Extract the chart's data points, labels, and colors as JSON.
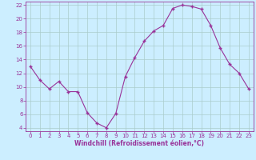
{
  "x": [
    0,
    1,
    2,
    3,
    4,
    5,
    6,
    7,
    8,
    9,
    10,
    11,
    12,
    13,
    14,
    15,
    16,
    17,
    18,
    19,
    20,
    21,
    22,
    23
  ],
  "y": [
    13,
    11,
    9.7,
    10.8,
    9.3,
    9.3,
    6.2,
    4.7,
    4.0,
    6.1,
    11.5,
    14.3,
    16.7,
    18.2,
    19.0,
    21.5,
    22.0,
    21.8,
    21.4,
    19.0,
    15.7,
    13.3,
    12.0,
    9.7
  ],
  "line_color": "#993399",
  "marker": "+",
  "marker_size": 3,
  "marker_lw": 1.0,
  "bg_color": "#cceeff",
  "grid_color": "#aacccc",
  "xlabel": "Windchill (Refroidissement éolien,°C)",
  "xlabel_color": "#993399",
  "tick_color": "#993399",
  "spine_color": "#993399",
  "ylim": [
    3.5,
    22.5
  ],
  "xlim": [
    -0.5,
    23.5
  ],
  "yticks": [
    4,
    6,
    8,
    10,
    12,
    14,
    16,
    18,
    20,
    22
  ],
  "xticks": [
    0,
    1,
    2,
    3,
    4,
    5,
    6,
    7,
    8,
    9,
    10,
    11,
    12,
    13,
    14,
    15,
    16,
    17,
    18,
    19,
    20,
    21,
    22,
    23
  ],
  "tick_fontsize": 5,
  "xlabel_fontsize": 5.5
}
